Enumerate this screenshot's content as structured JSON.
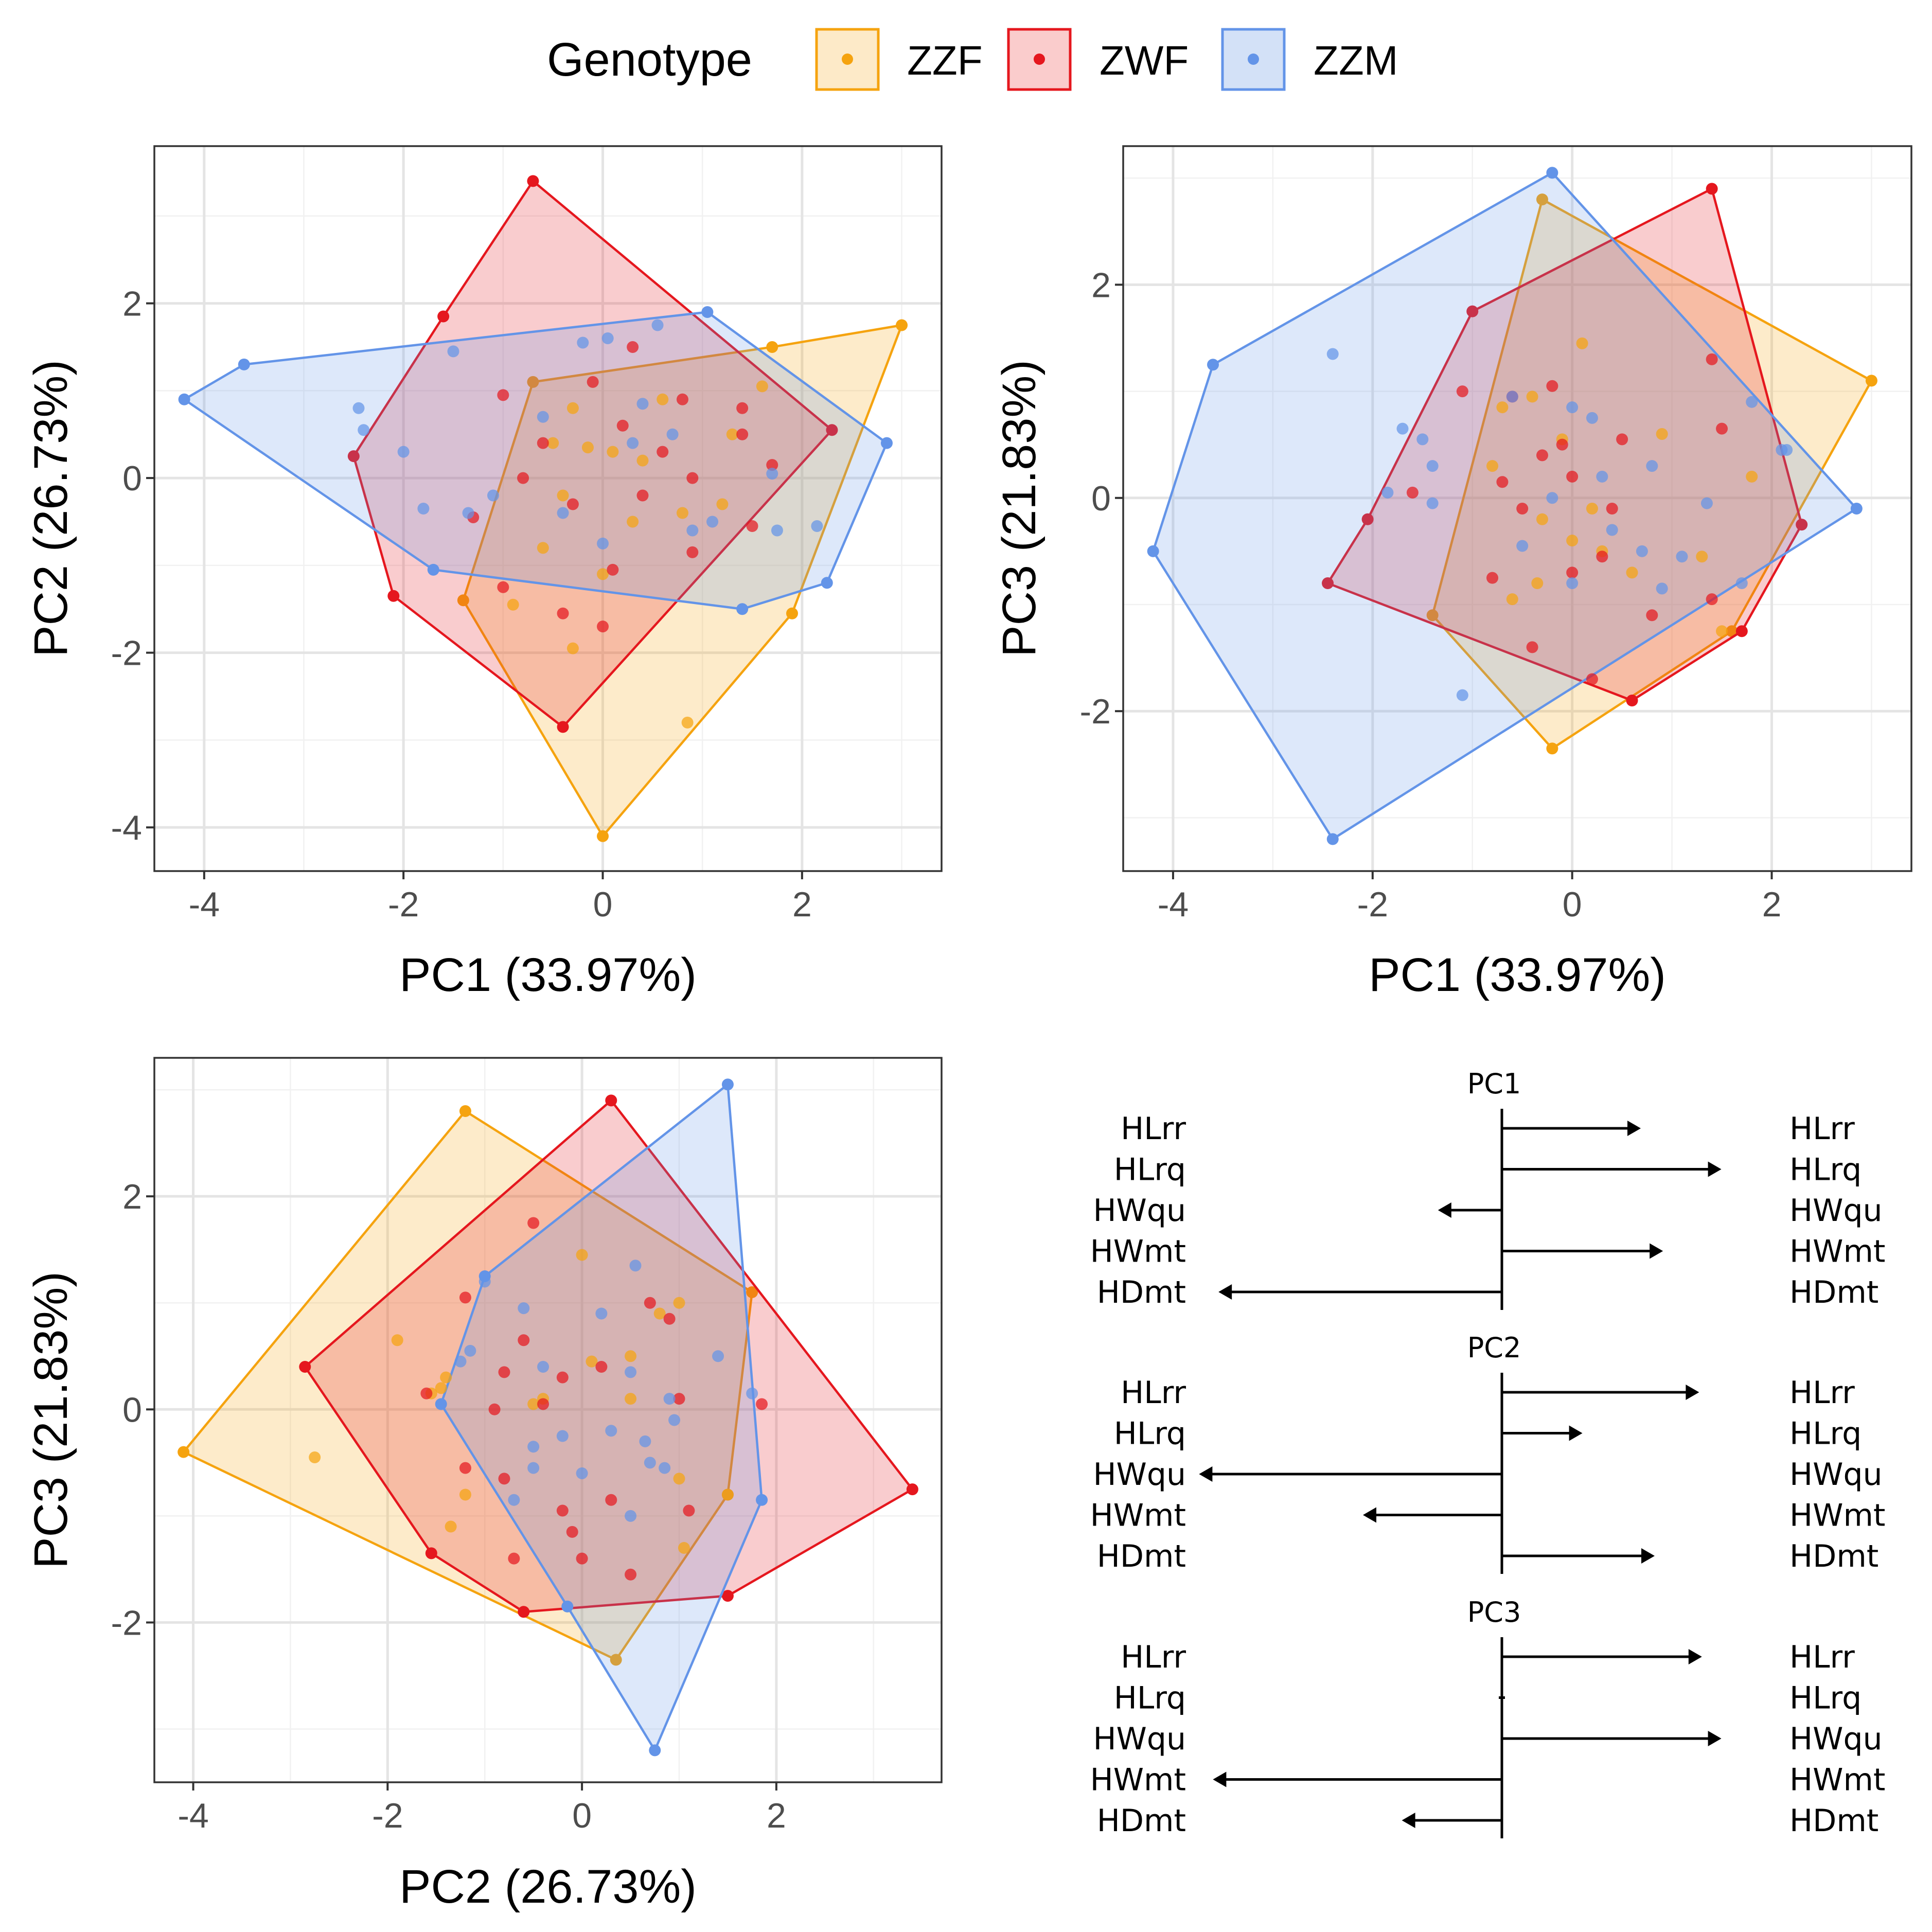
{
  "legend": {
    "title": "Genotype",
    "items": [
      {
        "label": "ZZF",
        "color": "#F5A30F",
        "fill": "#FDE6BE"
      },
      {
        "label": "ZWF",
        "color": "#E5171E",
        "fill": "#F9C3C3"
      },
      {
        "label": "ZZM",
        "color": "#6394E8",
        "fill": "#CBDCF6"
      }
    ]
  },
  "chart_data": [
    {
      "type": "scatter",
      "xlabel": "PC1 (33.97%)",
      "ylabel": "PC2 (26.73%)",
      "xlim": [
        -4.5,
        3.4
      ],
      "ylim": [
        -4.5,
        3.8
      ],
      "xticks": [
        -4,
        -2,
        0,
        2
      ],
      "yticks": [
        -4,
        -2,
        0,
        2
      ],
      "hulls": {
        "ZZF": [
          [
            3.0,
            1.75
          ],
          [
            1.7,
            1.5
          ],
          [
            -0.7,
            1.1
          ],
          [
            -1.4,
            -1.4
          ],
          [
            0.0,
            -4.1
          ],
          [
            1.9,
            -1.55
          ]
        ],
        "ZWF": [
          [
            -0.7,
            3.4
          ],
          [
            2.3,
            0.55
          ],
          [
            -0.4,
            -2.85
          ],
          [
            -2.1,
            -1.35
          ],
          [
            -2.5,
            0.25
          ],
          [
            -1.6,
            1.85
          ]
        ],
        "ZZM": [
          [
            -4.2,
            0.9
          ],
          [
            -3.6,
            1.3
          ],
          [
            1.05,
            1.9
          ],
          [
            2.85,
            0.4
          ],
          [
            2.25,
            -1.2
          ],
          [
            1.4,
            -1.5
          ],
          [
            -1.7,
            -1.05
          ]
        ]
      },
      "series": [
        {
          "name": "ZZF",
          "points": [
            [
              -0.3,
              0.8
            ],
            [
              0.6,
              0.9
            ],
            [
              0.1,
              0.3
            ],
            [
              -0.5,
              0.4
            ],
            [
              0.4,
              0.2
            ],
            [
              1.3,
              0.5
            ],
            [
              1.2,
              -0.3
            ],
            [
              -0.4,
              -0.2
            ],
            [
              0.3,
              -0.5
            ],
            [
              0.8,
              -0.4
            ],
            [
              -0.6,
              -0.8
            ],
            [
              0.0,
              -1.1
            ],
            [
              -0.9,
              -1.45
            ],
            [
              -0.3,
              -1.95
            ],
            [
              0.85,
              -2.8
            ],
            [
              -0.15,
              0.35
            ],
            [
              1.6,
              1.05
            ]
          ]
        },
        {
          "name": "ZWF",
          "points": [
            [
              -1.0,
              0.95
            ],
            [
              -0.6,
              0.4
            ],
            [
              -0.1,
              1.1
            ],
            [
              0.3,
              1.5
            ],
            [
              0.8,
              0.9
            ],
            [
              1.4,
              0.8
            ],
            [
              1.4,
              0.5
            ],
            [
              1.7,
              0.15
            ],
            [
              -0.8,
              0.0
            ],
            [
              -0.3,
              -0.3
            ],
            [
              0.2,
              0.6
            ],
            [
              0.6,
              0.3
            ],
            [
              0.9,
              0.0
            ],
            [
              0.4,
              -0.2
            ],
            [
              1.5,
              -0.55
            ],
            [
              -1.0,
              -1.25
            ],
            [
              -0.4,
              -1.55
            ],
            [
              0.0,
              -1.7
            ],
            [
              0.1,
              -1.05
            ],
            [
              -1.3,
              -0.45
            ],
            [
              0.9,
              -0.85
            ]
          ]
        },
        {
          "name": "ZZM",
          "points": [
            [
              -2.45,
              0.8
            ],
            [
              -2.4,
              0.55
            ],
            [
              -2.0,
              0.3
            ],
            [
              -1.5,
              1.45
            ],
            [
              -1.8,
              -0.35
            ],
            [
              -1.35,
              -0.4
            ],
            [
              -1.1,
              -0.2
            ],
            [
              -0.2,
              1.55
            ],
            [
              0.05,
              1.6
            ],
            [
              0.55,
              1.75
            ],
            [
              -0.6,
              0.7
            ],
            [
              0.4,
              0.85
            ],
            [
              0.3,
              0.4
            ],
            [
              0.7,
              0.5
            ],
            [
              -0.4,
              -0.4
            ],
            [
              0.0,
              -0.75
            ],
            [
              0.9,
              -0.6
            ],
            [
              1.1,
              -0.5
            ],
            [
              1.75,
              -0.6
            ],
            [
              2.15,
              -0.55
            ],
            [
              1.7,
              0.05
            ]
          ]
        }
      ]
    },
    {
      "type": "scatter",
      "xlabel": "PC1 (33.97%)",
      "ylabel": "PC3 (21.83%)",
      "xlim": [
        -4.5,
        3.4
      ],
      "ylim": [
        -3.5,
        3.3
      ],
      "xticks": [
        -4,
        -2,
        0,
        2
      ],
      "yticks": [
        -2,
        0,
        2
      ],
      "hulls": {
        "ZZF": [
          [
            -0.3,
            2.8
          ],
          [
            3.0,
            1.1
          ],
          [
            1.6,
            -1.25
          ],
          [
            -0.2,
            -2.35
          ],
          [
            -1.4,
            -1.1
          ]
        ],
        "ZWF": [
          [
            -1.0,
            1.75
          ],
          [
            1.4,
            2.9
          ],
          [
            2.3,
            -0.25
          ],
          [
            1.7,
            -1.25
          ],
          [
            0.6,
            -1.9
          ],
          [
            -2.45,
            -0.8
          ],
          [
            -2.05,
            -0.2
          ]
        ],
        "ZZM": [
          [
            -0.2,
            3.05
          ],
          [
            2.85,
            -0.1
          ],
          [
            -2.4,
            -3.2
          ],
          [
            -4.2,
            -0.5
          ],
          [
            -3.6,
            1.25
          ]
        ]
      },
      "series": [
        {
          "name": "ZZF",
          "points": [
            [
              0.1,
              1.45
            ],
            [
              -0.4,
              0.95
            ],
            [
              -0.7,
              0.85
            ],
            [
              -0.1,
              0.55
            ],
            [
              0.9,
              0.6
            ],
            [
              1.8,
              0.2
            ],
            [
              -0.8,
              0.3
            ],
            [
              0.0,
              -0.4
            ],
            [
              -0.3,
              -0.2
            ],
            [
              0.3,
              -0.5
            ],
            [
              0.6,
              -0.7
            ],
            [
              1.3,
              -0.55
            ],
            [
              -0.35,
              -0.8
            ],
            [
              -0.6,
              -0.95
            ],
            [
              1.5,
              -1.25
            ],
            [
              0.2,
              -0.1
            ]
          ]
        },
        {
          "name": "ZWF",
          "points": [
            [
              -1.1,
              1.0
            ],
            [
              -0.6,
              0.95
            ],
            [
              -0.2,
              1.05
            ],
            [
              1.4,
              1.3
            ],
            [
              1.5,
              0.65
            ],
            [
              0.5,
              0.55
            ],
            [
              -0.3,
              0.4
            ],
            [
              0.0,
              0.2
            ],
            [
              -0.7,
              0.15
            ],
            [
              -1.6,
              0.05
            ],
            [
              -0.5,
              -0.1
            ],
            [
              0.4,
              -0.1
            ],
            [
              -0.8,
              -0.75
            ],
            [
              0.0,
              -0.7
            ],
            [
              0.3,
              -0.55
            ],
            [
              0.8,
              -1.1
            ],
            [
              -0.4,
              -1.4
            ],
            [
              0.2,
              -1.7
            ],
            [
              1.4,
              -0.95
            ],
            [
              -0.1,
              0.5
            ]
          ]
        },
        {
          "name": "ZZM",
          "points": [
            [
              -2.4,
              1.35
            ],
            [
              -1.7,
              0.65
            ],
            [
              -1.5,
              0.55
            ],
            [
              -1.4,
              0.3
            ],
            [
              -1.85,
              0.05
            ],
            [
              -1.4,
              -0.05
            ],
            [
              -0.6,
              0.95
            ],
            [
              0.0,
              0.85
            ],
            [
              0.2,
              0.75
            ],
            [
              0.8,
              0.3
            ],
            [
              0.3,
              0.2
            ],
            [
              -0.2,
              0.0
            ],
            [
              0.4,
              -0.3
            ],
            [
              0.7,
              -0.5
            ],
            [
              1.1,
              -0.55
            ],
            [
              0.9,
              -0.85
            ],
            [
              1.35,
              -0.05
            ],
            [
              1.7,
              -0.8
            ],
            [
              2.1,
              0.45
            ],
            [
              2.15,
              0.45
            ],
            [
              1.8,
              0.9
            ],
            [
              -1.1,
              -1.85
            ],
            [
              0.0,
              -0.8
            ],
            [
              -0.5,
              -0.45
            ]
          ]
        }
      ]
    },
    {
      "type": "scatter",
      "xlabel": "PC2 (26.73%)",
      "ylabel": "PC3 (21.83%)",
      "xlim": [
        -4.4,
        3.7
      ],
      "ylim": [
        -3.5,
        3.3
      ],
      "xticks": [
        -4,
        -2,
        0,
        2
      ],
      "yticks": [
        -2,
        0,
        2
      ],
      "hulls": {
        "ZZF": [
          [
            -1.2,
            2.8
          ],
          [
            1.75,
            1.1
          ],
          [
            1.5,
            -0.8
          ],
          [
            0.35,
            -2.35
          ],
          [
            -4.1,
            -0.4
          ]
        ],
        "ZWF": [
          [
            0.3,
            2.9
          ],
          [
            3.4,
            -0.75
          ],
          [
            1.5,
            -1.75
          ],
          [
            -0.6,
            -1.9
          ],
          [
            -1.55,
            -1.35
          ],
          [
            -2.85,
            0.4
          ]
        ],
        "ZZM": [
          [
            1.5,
            3.05
          ],
          [
            1.85,
            -0.85
          ],
          [
            0.75,
            -3.2
          ],
          [
            -0.15,
            -1.85
          ],
          [
            -1.45,
            0.05
          ],
          [
            -1.0,
            1.25
          ]
        ]
      },
      "series": [
        {
          "name": "ZZF",
          "points": [
            [
              -1.9,
              0.65
            ],
            [
              -2.75,
              -0.45
            ],
            [
              -1.4,
              0.3
            ],
            [
              -1.45,
              0.2
            ],
            [
              -1.55,
              0.15
            ],
            [
              -1.2,
              -0.8
            ],
            [
              -1.35,
              -1.1
            ],
            [
              0.0,
              1.45
            ],
            [
              1.0,
              1.0
            ],
            [
              0.8,
              0.9
            ],
            [
              0.1,
              0.45
            ],
            [
              0.5,
              0.5
            ],
            [
              -0.4,
              0.1
            ],
            [
              -0.5,
              0.05
            ],
            [
              1.0,
              -0.65
            ],
            [
              0.5,
              0.1
            ],
            [
              1.05,
              -1.3
            ],
            [
              1.5,
              -0.8
            ]
          ]
        },
        {
          "name": "ZWF",
          "points": [
            [
              -0.5,
              1.75
            ],
            [
              -1.2,
              1.05
            ],
            [
              0.7,
              1.0
            ],
            [
              -0.6,
              0.65
            ],
            [
              0.9,
              0.85
            ],
            [
              -0.8,
              0.35
            ],
            [
              -0.9,
              0.0
            ],
            [
              -0.2,
              0.3
            ],
            [
              0.2,
              0.4
            ],
            [
              1.0,
              0.1
            ],
            [
              -1.6,
              0.15
            ],
            [
              -0.8,
              -0.65
            ],
            [
              -0.2,
              -0.95
            ],
            [
              0.3,
              -0.85
            ],
            [
              -0.1,
              -1.15
            ],
            [
              0.0,
              -1.4
            ],
            [
              -1.2,
              -0.55
            ],
            [
              1.1,
              -0.95
            ],
            [
              1.85,
              0.05
            ],
            [
              -0.7,
              -1.4
            ],
            [
              0.5,
              -1.55
            ],
            [
              -0.4,
              0.05
            ]
          ]
        },
        {
          "name": "ZZM",
          "points": [
            [
              -1.0,
              1.2
            ],
            [
              -0.6,
              0.95
            ],
            [
              0.55,
              1.35
            ],
            [
              0.2,
              0.9
            ],
            [
              -1.15,
              0.55
            ],
            [
              -1.25,
              0.45
            ],
            [
              -0.4,
              0.4
            ],
            [
              0.5,
              0.35
            ],
            [
              1.4,
              0.5
            ],
            [
              -0.5,
              -0.35
            ],
            [
              -0.2,
              -0.25
            ],
            [
              0.3,
              -0.2
            ],
            [
              0.9,
              0.1
            ],
            [
              0.7,
              -0.5
            ],
            [
              0.85,
              -0.55
            ],
            [
              1.75,
              0.15
            ],
            [
              -0.7,
              -0.85
            ],
            [
              -0.5,
              -0.55
            ],
            [
              0.95,
              -0.1
            ],
            [
              0.0,
              -0.6
            ],
            [
              0.65,
              -0.3
            ],
            [
              0.5,
              -1.0
            ]
          ]
        }
      ]
    }
  ],
  "loadings": {
    "xlim": [
      -1,
      1
    ],
    "panels": [
      {
        "title": "PC1",
        "items": [
          {
            "label": "HLrr",
            "value": 0.5
          },
          {
            "label": "HLrq",
            "value": 0.79
          },
          {
            "label": "HWqu",
            "value": -0.23
          },
          {
            "label": "HWmt",
            "value": 0.58
          },
          {
            "label": "HDmt",
            "value": -1.02
          }
        ]
      },
      {
        "title": "PC2",
        "items": [
          {
            "label": "HLrr",
            "value": 0.71
          },
          {
            "label": "HLrq",
            "value": 0.29
          },
          {
            "label": "HWqu",
            "value": -1.09
          },
          {
            "label": "HWmt",
            "value": -0.5
          },
          {
            "label": "HDmt",
            "value": 0.55
          }
        ]
      },
      {
        "title": "PC3",
        "items": [
          {
            "label": "HLrr",
            "value": 0.72
          },
          {
            "label": "HLrq",
            "value": 0.0
          },
          {
            "label": "HWqu",
            "value": 0.79
          },
          {
            "label": "HWmt",
            "value": -1.04
          },
          {
            "label": "HDmt",
            "value": -0.36
          }
        ]
      }
    ]
  }
}
